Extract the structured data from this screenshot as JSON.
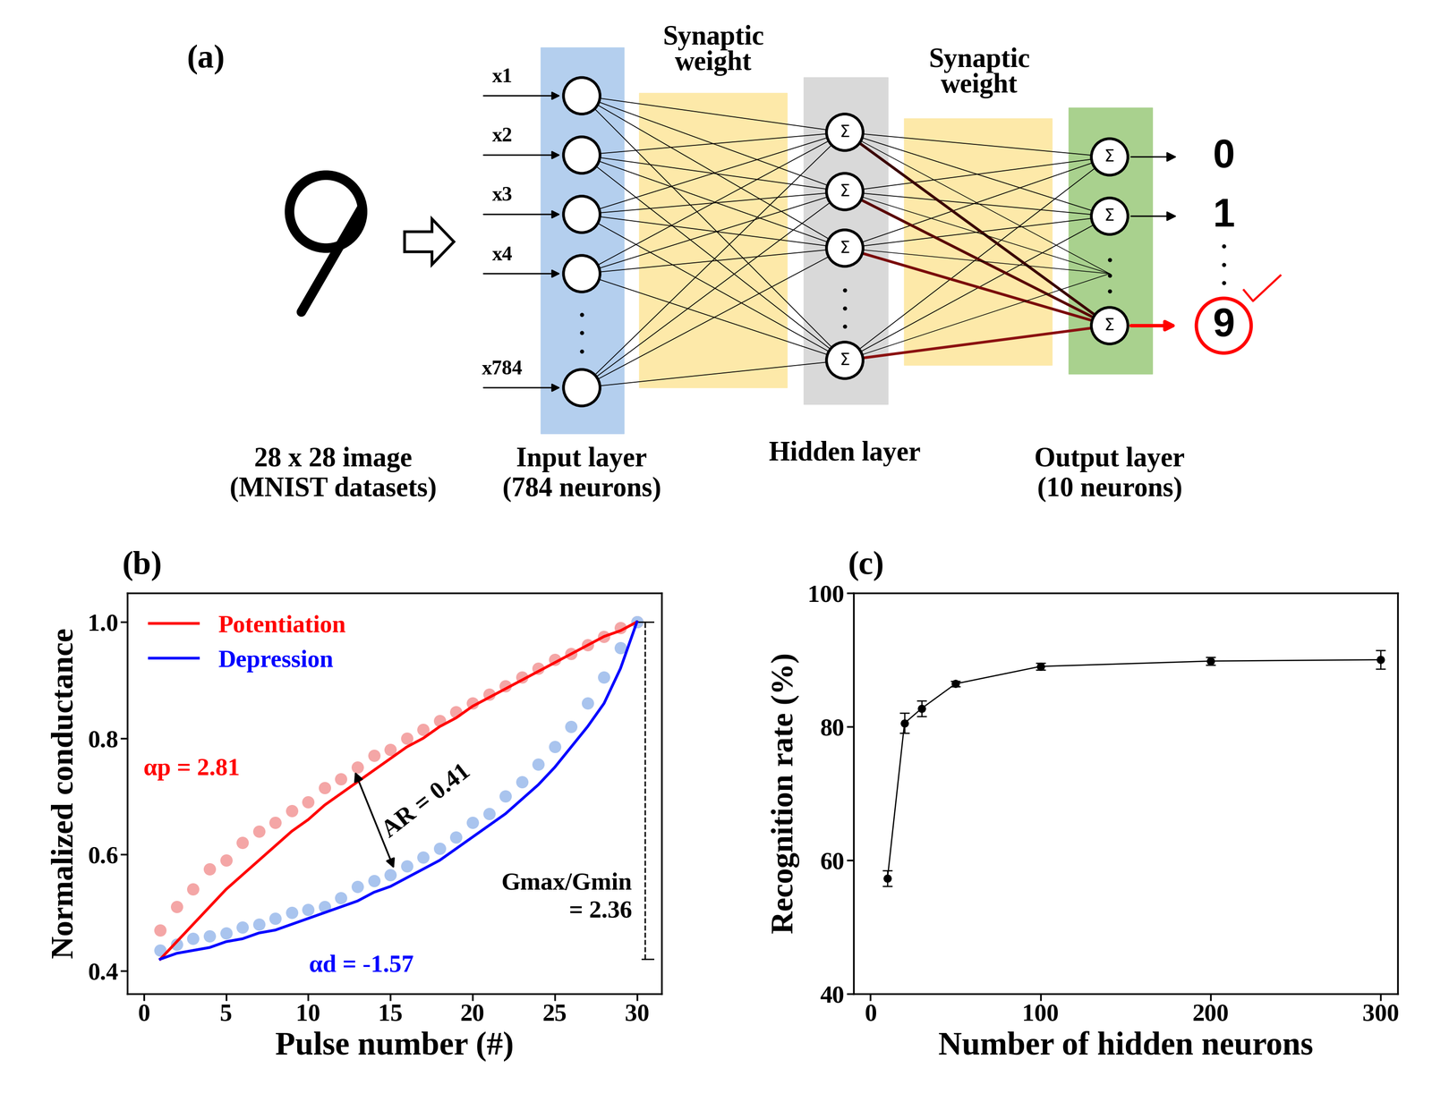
{
  "diagram": {
    "label": "(a)",
    "image_caption": "28 x 28 image\n(MNIST datasets)",
    "inputs": [
      "x1",
      "x2",
      "x3",
      "x4",
      "x784"
    ],
    "weight_labels": [
      "Synaptic\nweight",
      "Synaptic\nweight"
    ],
    "layers": [
      "Input layer\n(784 neurons)",
      "Hidden layer",
      "Output layer\n(10 neurons)"
    ],
    "node_symbol": "Σ",
    "outputs": [
      "0",
      "1",
      "9"
    ],
    "selected_output": "9"
  },
  "chart_data": [
    {
      "type": "line",
      "title": "(b)",
      "x_label": "Pulse number (#)",
      "y_label": "Normalized conductance",
      "xlim": [
        -1,
        31.5
      ],
      "xticks": [
        0,
        5,
        10,
        15,
        20,
        25,
        30
      ],
      "ylim": [
        0.36,
        1.05
      ],
      "yticks": [
        0.4,
        0.6,
        0.8,
        {
          "value": 1,
          "label": "1.0"
        }
      ],
      "legend": "upper left",
      "x": [
        1,
        2,
        3,
        4,
        5,
        6,
        7,
        8,
        9,
        10,
        11,
        12,
        13,
        14,
        15,
        16,
        17,
        18,
        19,
        20,
        21,
        22,
        23,
        24,
        25,
        26,
        27,
        28,
        29,
        30
      ],
      "series": [
        {
          "type": "scatter",
          "color": "#f4a6a6",
          "marker": "circle",
          "values": [
            0.47,
            0.51,
            0.54,
            0.575,
            0.59,
            0.62,
            0.64,
            0.655,
            0.675,
            0.69,
            0.715,
            0.73,
            0.75,
            0.77,
            0.78,
            0.8,
            0.815,
            0.83,
            0.845,
            0.86,
            0.875,
            0.89,
            0.905,
            0.92,
            0.935,
            0.945,
            0.96,
            0.975,
            0.99,
            1.0
          ]
        },
        {
          "type": "scatter",
          "color": "#a9c4ee",
          "marker": "circle",
          "values": [
            0.435,
            0.445,
            0.455,
            0.46,
            0.465,
            0.475,
            0.48,
            0.49,
            0.5,
            0.505,
            0.51,
            0.525,
            0.545,
            0.555,
            0.565,
            0.58,
            0.595,
            0.61,
            0.63,
            0.655,
            0.67,
            0.7,
            0.725,
            0.755,
            0.785,
            0.82,
            0.86,
            0.905,
            0.955,
            1.0
          ]
        },
        {
          "name": "Potentiation",
          "type": "line",
          "color": "#ff0000",
          "line_style": "solid",
          "values": [
            0.42,
            0.45,
            0.48,
            0.51,
            0.54,
            0.565,
            0.59,
            0.615,
            0.64,
            0.66,
            0.685,
            0.705,
            0.725,
            0.745,
            0.765,
            0.785,
            0.8,
            0.82,
            0.835,
            0.855,
            0.87,
            0.885,
            0.9,
            0.915,
            0.93,
            0.945,
            0.96,
            0.975,
            0.985,
            1.0
          ]
        },
        {
          "name": "Depression",
          "type": "line",
          "color": "#0000ff",
          "line_style": "solid",
          "values": [
            0.42,
            0.43,
            0.435,
            0.44,
            0.45,
            0.455,
            0.465,
            0.47,
            0.48,
            0.49,
            0.5,
            0.51,
            0.52,
            0.535,
            0.545,
            0.56,
            0.575,
            0.59,
            0.61,
            0.63,
            0.65,
            0.67,
            0.695,
            0.72,
            0.75,
            0.785,
            0.82,
            0.86,
            0.92,
            1.0
          ]
        }
      ],
      "annotations": [
        {
          "text": "αp = 2.81",
          "color": "#ff0000"
        },
        {
          "text": "AR = 0.41",
          "color": "#000000"
        },
        {
          "text": "αd = -1.57",
          "color": "#0000ff"
        },
        {
          "text": "Gmax/Gmin\n= 2.36",
          "color": "#000000"
        }
      ]
    },
    {
      "type": "line",
      "title": "(c)",
      "x_label": "Number of hidden neurons",
      "y_label": "Recognition rate (%)",
      "xlim": [
        -10,
        310
      ],
      "xticks": [
        0,
        100,
        200,
        300
      ],
      "ylim": [
        40,
        100
      ],
      "yticks": [
        40,
        60,
        80,
        100
      ],
      "x": [
        10,
        20,
        30,
        50,
        100,
        200,
        300
      ],
      "series": [
        {
          "color": "#000000",
          "marker": "circle",
          "line_style": "solid",
          "values": [
            57.3,
            80.5,
            82.7,
            86.4,
            89.0,
            89.8,
            90.0
          ],
          "errors": [
            1.2,
            1.5,
            1.2,
            0.4,
            0.5,
            0.6,
            1.4
          ]
        }
      ]
    }
  ]
}
